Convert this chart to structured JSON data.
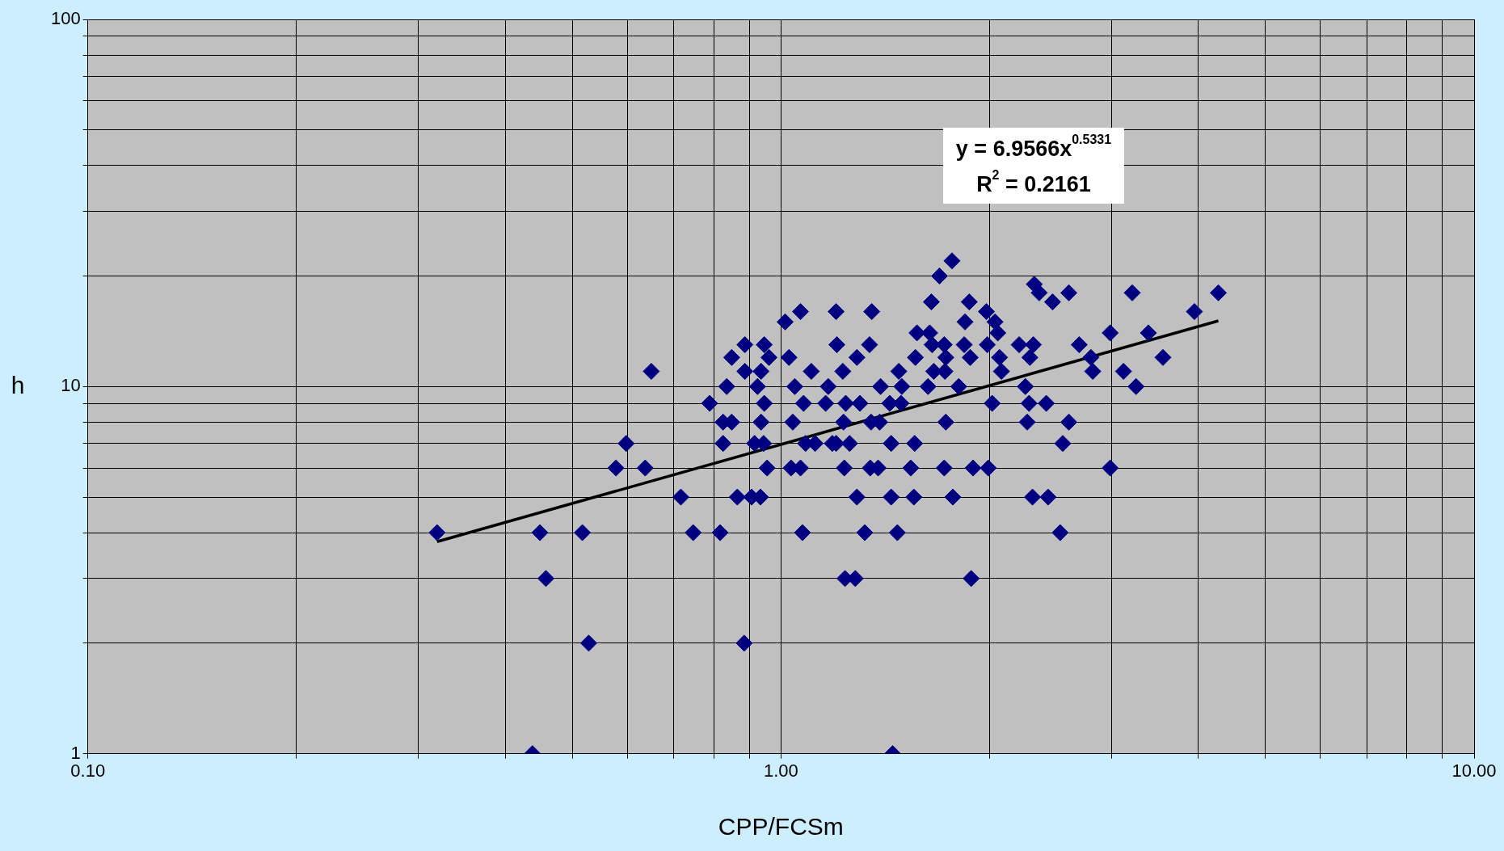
{
  "chart_data": {
    "type": "scatter",
    "xlabel": "CPP/FCSm",
    "ylabel": "h",
    "log": "xy",
    "grid": true,
    "legend": false,
    "marker": "diamond",
    "annotations": [
      "y = 6.9566x$^{0.5331}$",
      "R$^{2}$ = 0.2161"
    ],
    "xlim": [
      0.1,
      10
    ],
    "ylim": [
      1,
      100
    ],
    "xticks": [
      {
        "value": 0.1,
        "label": "0.10"
      },
      {
        "value": 0.2,
        "label": null
      },
      {
        "value": 0.3,
        "label": null
      },
      {
        "value": 0.4,
        "label": null
      },
      {
        "value": 0.5,
        "label": null
      },
      {
        "value": 0.6,
        "label": null
      },
      {
        "value": 0.7,
        "label": null
      },
      {
        "value": 0.8,
        "label": null
      },
      {
        "value": 0.9,
        "label": null
      },
      {
        "value": 1,
        "label": "1.00"
      },
      {
        "value": 2,
        "label": null
      },
      {
        "value": 3,
        "label": null
      },
      {
        "value": 4,
        "label": null
      },
      {
        "value": 5,
        "label": null
      },
      {
        "value": 6,
        "label": null
      },
      {
        "value": 7,
        "label": null
      },
      {
        "value": 8,
        "label": null
      },
      {
        "value": 9,
        "label": null
      },
      {
        "value": 10,
        "label": "10.00"
      }
    ],
    "yticks": [
      1,
      {
        "value": 2,
        "label": null
      },
      {
        "value": 3,
        "label": null
      },
      {
        "value": 4,
        "label": null
      },
      {
        "value": 5,
        "label": null
      },
      {
        "value": 6,
        "label": null
      },
      {
        "value": 7,
        "label": null
      },
      {
        "value": 8,
        "label": null
      },
      {
        "value": 9,
        "label": null
      },
      10,
      {
        "value": 20,
        "label": null
      },
      {
        "value": 30,
        "label": null
      },
      {
        "value": 40,
        "label": null
      },
      {
        "value": 50,
        "label": null
      },
      {
        "value": 60,
        "label": null
      },
      {
        "value": 70,
        "label": null
      },
      {
        "value": 80,
        "label": null
      },
      {
        "value": 90,
        "label": null
      },
      100
    ],
    "x": [
      0.319,
      0.438,
      0.449,
      0.458,
      0.517,
      0.528,
      0.578,
      0.598,
      0.637,
      0.65,
      0.717,
      0.747,
      0.789,
      0.817,
      0.825,
      0.825,
      0.835,
      0.849,
      0.849,
      0.865,
      0.885,
      0.887,
      0.887,
      0.907,
      0.916,
      0.925,
      0.934,
      0.936,
      0.936,
      0.946,
      0.946,
      0.944,
      0.955,
      0.961,
      1.014,
      1.027,
      1.034,
      1.04,
      1.047,
      1.067,
      1.067,
      1.074,
      1.078,
      1.085,
      1.106,
      1.12,
      1.16,
      1.17,
      1.186,
      1.201,
      1.204,
      1.201,
      1.228,
      1.231,
      1.234,
      1.237,
      1.24,
      1.256,
      1.28,
      1.287,
      1.287,
      1.3,
      1.321,
      1.342,
      1.345,
      1.352,
      1.349,
      1.381,
      1.388,
      1.392,
      1.435,
      1.442,
      1.442,
      1.449,
      1.472,
      1.479,
      1.49,
      1.494,
      1.539,
      1.555,
      1.559,
      1.563,
      1.571,
      1.63,
      1.639,
      1.648,
      1.652,
      1.661,
      1.693,
      1.72,
      1.72,
      1.724,
      1.729,
      1.729,
      1.765,
      1.77,
      1.805,
      1.838,
      1.843,
      1.869,
      1.875,
      1.881,
      1.893,
      1.979,
      1.985,
      1.991,
      2.017,
      2.036,
      2.055,
      2.067,
      2.08,
      2.206,
      2.252,
      2.266,
      2.28,
      2.286,
      2.306,
      2.313,
      2.32,
      2.358,
      2.429,
      2.414,
      2.465,
      2.528,
      2.55,
      2.602,
      2.602,
      2.693,
      2.8,
      2.817,
      2.985,
      2.985,
      3.12,
      3.212,
      3.253,
      3.389,
      3.557,
      3.949,
      4.276
    ],
    "series": [
      {
        "color": "#000080",
        "values": [
          4,
          1,
          4,
          3,
          4,
          2,
          6,
          7,
          6,
          11,
          5,
          4,
          9,
          4,
          8,
          7,
          10,
          8,
          12,
          5,
          2,
          13,
          11,
          5,
          7,
          10,
          5,
          8,
          11,
          13,
          9,
          7,
          6,
          12,
          15,
          12,
          6,
          8,
          10,
          16,
          6,
          4,
          9,
          7,
          11,
          7,
          9,
          10,
          7,
          16,
          13,
          7,
          11,
          8,
          6,
          3,
          9,
          7,
          3,
          12,
          5,
          9,
          4,
          13,
          6,
          16,
          8,
          6,
          8,
          10,
          9,
          7,
          5,
          1,
          4,
          11,
          9,
          10,
          6,
          5,
          7,
          12,
          14,
          10,
          14,
          17,
          13,
          11,
          20,
          6,
          13,
          11,
          12,
          8,
          22,
          5,
          10,
          13,
          15,
          17,
          12,
          3,
          6,
          16,
          13,
          6,
          9,
          15,
          14,
          12,
          11,
          13,
          10,
          8,
          9,
          12,
          5,
          13,
          19,
          18,
          5,
          9,
          17,
          4,
          7,
          8,
          18,
          13,
          12,
          11,
          14,
          6,
          11,
          18,
          10,
          14,
          12,
          16,
          18
        ]
      },
      {
        "type": "line",
        "color": "#000000",
        "x": [
          0.319,
          4.276
        ],
        "values": [
          3.78,
          15.1
        ],
        "marker": "none"
      }
    ]
  }
}
